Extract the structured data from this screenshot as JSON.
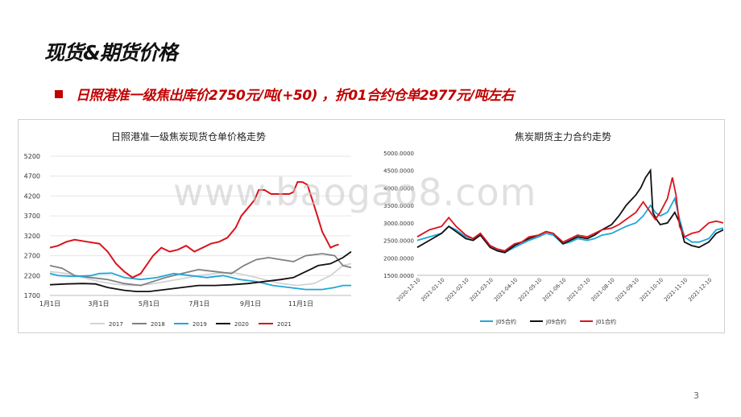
{
  "slide": {
    "title": "现货&期货价格",
    "bullet": "日照港准一级焦出库价2750元/吨(+50) ，折01合约仓单2977元/吨左右",
    "watermark": "www.baogao8.com",
    "page_number": "3"
  },
  "colors": {
    "red": "#d9141c",
    "black": "#111111",
    "gray": "#808080",
    "lightgray": "#d3d3d3",
    "blue": "#1ea7d8"
  },
  "chart_data": [
    {
      "type": "line",
      "title": "日照港准一级焦炭现货仓单价格走势",
      "ylim": [
        1700,
        5200
      ],
      "yticks": [
        1700,
        2200,
        2700,
        3200,
        3700,
        4200,
        4700,
        5200
      ],
      "xticks": [
        "1月1日",
        "3月1日",
        "5月1日",
        "7月1日",
        "9月1日",
        "11月1日"
      ],
      "xrange_days": [
        0,
        365
      ],
      "xtick_days": [
        0,
        59,
        120,
        181,
        243,
        304
      ],
      "series": [
        {
          "name": "2017",
          "color": "#d3d3d3",
          "points": [
            [
              0,
              2300
            ],
            [
              20,
              2250
            ],
            [
              40,
              2150
            ],
            [
              60,
              2050
            ],
            [
              80,
              1980
            ],
            [
              100,
              1950
            ],
            [
              120,
              1980
            ],
            [
              140,
              2050
            ],
            [
              160,
              2120
            ],
            [
              180,
              2200
            ],
            [
              200,
              2250
            ],
            [
              220,
              2280
            ],
            [
              240,
              2200
            ],
            [
              260,
              2100
            ],
            [
              280,
              2000
            ],
            [
              300,
              1950
            ],
            [
              320,
              2000
            ],
            [
              340,
              2200
            ],
            [
              355,
              2450
            ],
            [
              365,
              2500
            ]
          ]
        },
        {
          "name": "2018",
          "color": "#808080",
          "points": [
            [
              0,
              2450
            ],
            [
              15,
              2380
            ],
            [
              30,
              2200
            ],
            [
              50,
              2150
            ],
            [
              70,
              2100
            ],
            [
              90,
              2000
            ],
            [
              110,
              1950
            ],
            [
              125,
              2050
            ],
            [
              140,
              2150
            ],
            [
              160,
              2250
            ],
            [
              180,
              2350
            ],
            [
              200,
              2300
            ],
            [
              220,
              2250
            ],
            [
              235,
              2450
            ],
            [
              250,
              2600
            ],
            [
              265,
              2650
            ],
            [
              280,
              2600
            ],
            [
              295,
              2550
            ],
            [
              310,
              2700
            ],
            [
              330,
              2750
            ],
            [
              345,
              2700
            ],
            [
              355,
              2450
            ],
            [
              365,
              2400
            ]
          ]
        },
        {
          "name": "2019",
          "color": "#1ea7d8",
          "points": [
            [
              0,
              2250
            ],
            [
              10,
              2200
            ],
            [
              30,
              2180
            ],
            [
              50,
              2200
            ],
            [
              60,
              2250
            ],
            [
              75,
              2260
            ],
            [
              90,
              2150
            ],
            [
              110,
              2100
            ],
            [
              130,
              2150
            ],
            [
              150,
              2250
            ],
            [
              170,
              2200
            ],
            [
              190,
              2150
            ],
            [
              210,
              2200
            ],
            [
              230,
              2100
            ],
            [
              250,
              2050
            ],
            [
              270,
              1950
            ],
            [
              290,
              1900
            ],
            [
              310,
              1850
            ],
            [
              330,
              1850
            ],
            [
              345,
              1900
            ],
            [
              355,
              1950
            ],
            [
              365,
              1950
            ]
          ]
        },
        {
          "name": "2020",
          "color": "#111111",
          "points": [
            [
              0,
              1970
            ],
            [
              20,
              1990
            ],
            [
              40,
              2000
            ],
            [
              55,
              1990
            ],
            [
              70,
              1900
            ],
            [
              90,
              1830
            ],
            [
              105,
              1800
            ],
            [
              120,
              1800
            ],
            [
              140,
              1850
            ],
            [
              160,
              1900
            ],
            [
              180,
              1950
            ],
            [
              200,
              1950
            ],
            [
              220,
              1970
            ],
            [
              240,
              2000
            ],
            [
              260,
              2050
            ],
            [
              280,
              2100
            ],
            [
              295,
              2150
            ],
            [
              305,
              2250
            ],
            [
              315,
              2350
            ],
            [
              325,
              2450
            ],
            [
              340,
              2500
            ],
            [
              355,
              2650
            ],
            [
              365,
              2800
            ]
          ]
        },
        {
          "name": "2021",
          "color": "#d9141c",
          "points": [
            [
              0,
              2900
            ],
            [
              10,
              2950
            ],
            [
              20,
              3050
            ],
            [
              30,
              3100
            ],
            [
              45,
              3050
            ],
            [
              60,
              3000
            ],
            [
              70,
              2800
            ],
            [
              80,
              2500
            ],
            [
              90,
              2300
            ],
            [
              100,
              2150
            ],
            [
              110,
              2250
            ],
            [
              115,
              2400
            ],
            [
              125,
              2700
            ],
            [
              135,
              2900
            ],
            [
              145,
              2800
            ],
            [
              155,
              2850
            ],
            [
              165,
              2950
            ],
            [
              175,
              2800
            ],
            [
              185,
              2900
            ],
            [
              195,
              3000
            ],
            [
              205,
              3050
            ],
            [
              215,
              3150
            ],
            [
              225,
              3400
            ],
            [
              232,
              3700
            ],
            [
              240,
              3900
            ],
            [
              248,
              4100
            ],
            [
              253,
              4350
            ],
            [
              260,
              4350
            ],
            [
              268,
              4250
            ],
            [
              280,
              4250
            ],
            [
              290,
              4250
            ],
            [
              295,
              4300
            ],
            [
              300,
              4550
            ],
            [
              306,
              4550
            ],
            [
              312,
              4480
            ],
            [
              318,
              4100
            ],
            [
              324,
              3700
            ],
            [
              330,
              3300
            ],
            [
              335,
              3100
            ],
            [
              340,
              2900
            ],
            [
              345,
              2950
            ],
            [
              350,
              2980
            ]
          ]
        }
      ]
    },
    {
      "type": "line",
      "title": "焦炭期货主力合约走势",
      "ylim": [
        1500,
        5000
      ],
      "yticks": [
        "1500.0000",
        "2000.0000",
        "2500.0000",
        "3000.0000",
        "3500.0000",
        "4000.0000",
        "4500.0000",
        "5000.0000"
      ],
      "xticks": [
        "2020-12-10",
        "2021-01-10",
        "2021-02-10",
        "2021-03-10",
        "2021-04-10",
        "2021-05-10",
        "2021-06-10",
        "2021-07-10",
        "2021-08-10",
        "2021-09-10",
        "2021-10-10",
        "2021-11-10",
        "2021-12-10"
      ],
      "series": [
        {
          "name": "J05合约",
          "color": "#1ea7d8",
          "points": [
            [
              0,
              2500
            ],
            [
              1,
              2700
            ],
            [
              1.3,
              2900
            ],
            [
              1.6,
              2800
            ],
            [
              2,
              2600
            ],
            [
              2.3,
              2550
            ],
            [
              2.6,
              2700
            ],
            [
              3,
              2350
            ],
            [
              3.3,
              2250
            ],
            [
              3.6,
              2150
            ],
            [
              4,
              2300
            ],
            [
              4.3,
              2400
            ],
            [
              4.6,
              2500
            ],
            [
              5,
              2600
            ],
            [
              5.3,
              2700
            ],
            [
              5.6,
              2650
            ],
            [
              6,
              2400
            ],
            [
              6.3,
              2450
            ],
            [
              6.6,
              2550
            ],
            [
              7,
              2500
            ],
            [
              7.3,
              2550
            ],
            [
              7.6,
              2650
            ],
            [
              8,
              2700
            ],
            [
              8.3,
              2800
            ],
            [
              8.6,
              2900
            ],
            [
              9,
              3000
            ],
            [
              9.3,
              3200
            ],
            [
              9.6,
              3500
            ],
            [
              9.8,
              3300
            ],
            [
              10,
              3200
            ],
            [
              10.3,
              3300
            ],
            [
              10.6,
              3700
            ],
            [
              10.8,
              3100
            ],
            [
              11,
              2600
            ],
            [
              11.3,
              2450
            ],
            [
              11.6,
              2450
            ],
            [
              12,
              2550
            ],
            [
              12.3,
              2800
            ],
            [
              12.6,
              2850
            ],
            [
              12.9,
              2900
            ]
          ]
        },
        {
          "name": "J09合约",
          "color": "#111111",
          "points": [
            [
              0,
              2300
            ],
            [
              0.5,
              2500
            ],
            [
              1,
              2700
            ],
            [
              1.3,
              2900
            ],
            [
              1.6,
              2750
            ],
            [
              2,
              2550
            ],
            [
              2.3,
              2500
            ],
            [
              2.6,
              2650
            ],
            [
              3,
              2300
            ],
            [
              3.3,
              2200
            ],
            [
              3.6,
              2150
            ],
            [
              4,
              2350
            ],
            [
              4.3,
              2450
            ],
            [
              4.6,
              2550
            ],
            [
              5,
              2650
            ],
            [
              5.3,
              2750
            ],
            [
              5.6,
              2700
            ],
            [
              6,
              2400
            ],
            [
              6.3,
              2500
            ],
            [
              6.6,
              2600
            ],
            [
              7,
              2550
            ],
            [
              7.3,
              2650
            ],
            [
              7.6,
              2800
            ],
            [
              8,
              2950
            ],
            [
              8.3,
              3200
            ],
            [
              8.6,
              3500
            ],
            [
              9,
              3800
            ],
            [
              9.2,
              4000
            ],
            [
              9.4,
              4300
            ],
            [
              9.6,
              4500
            ],
            [
              9.7,
              3300
            ],
            [
              9.85,
              3100
            ],
            [
              10,
              2950
            ],
            [
              10.3,
              3000
            ],
            [
              10.6,
              3300
            ],
            [
              10.8,
              3000
            ],
            [
              11,
              2450
            ],
            [
              11.3,
              2350
            ],
            [
              11.6,
              2300
            ],
            [
              12,
              2450
            ],
            [
              12.3,
              2700
            ],
            [
              12.6,
              2800
            ],
            [
              12.9,
              2750
            ]
          ]
        },
        {
          "name": "J01合约",
          "color": "#d9141c",
          "points": [
            [
              0,
              2600
            ],
            [
              0.5,
              2800
            ],
            [
              1,
              2900
            ],
            [
              1.3,
              3150
            ],
            [
              1.6,
              2900
            ],
            [
              2,
              2650
            ],
            [
              2.3,
              2550
            ],
            [
              2.6,
              2700
            ],
            [
              3,
              2350
            ],
            [
              3.3,
              2250
            ],
            [
              3.6,
              2200
            ],
            [
              4,
              2400
            ],
            [
              4.3,
              2450
            ],
            [
              4.6,
              2600
            ],
            [
              5,
              2650
            ],
            [
              5.3,
              2750
            ],
            [
              5.6,
              2700
            ],
            [
              6,
              2450
            ],
            [
              6.3,
              2550
            ],
            [
              6.6,
              2650
            ],
            [
              7,
              2600
            ],
            [
              7.3,
              2700
            ],
            [
              7.6,
              2800
            ],
            [
              8,
              2850
            ],
            [
              8.3,
              2950
            ],
            [
              8.6,
              3100
            ],
            [
              9,
              3300
            ],
            [
              9.3,
              3600
            ],
            [
              9.6,
              3300
            ],
            [
              9.8,
              3100
            ],
            [
              10,
              3300
            ],
            [
              10.3,
              3700
            ],
            [
              10.5,
              4300
            ],
            [
              10.65,
              3800
            ],
            [
              10.8,
              2900
            ],
            [
              11,
              2600
            ],
            [
              11.3,
              2700
            ],
            [
              11.6,
              2750
            ],
            [
              12,
              3000
            ],
            [
              12.3,
              3050
            ],
            [
              12.6,
              3000
            ],
            [
              12.9,
              2980
            ]
          ]
        }
      ]
    }
  ]
}
